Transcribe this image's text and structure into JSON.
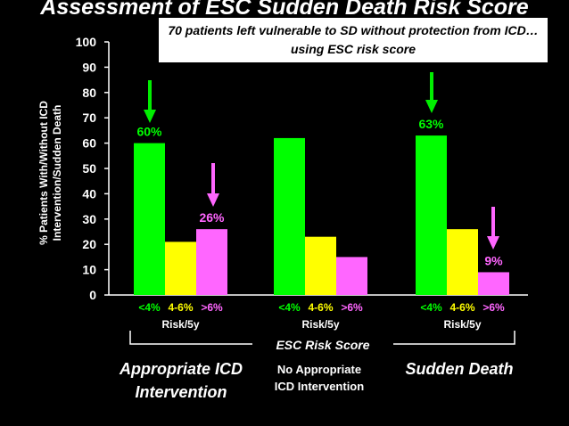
{
  "chart_data": {
    "type": "bar",
    "title": "Assessment of ESC Sudden Death Risk Score",
    "annotation": "70 patients left vulnerable to SD without protection from ICD… using ESC risk score",
    "ylabel": "% Patients With/Without ICD Intervention/Sudden Death",
    "ylim": [
      0,
      100
    ],
    "yticks": [
      0,
      10,
      20,
      30,
      40,
      50,
      60,
      70,
      80,
      90,
      100
    ],
    "grid": false,
    "categories": [
      "<4%",
      "4-6%",
      ">6%"
    ],
    "category_colors": [
      "#00ff00",
      "#ffff00",
      "#ff66ff"
    ],
    "risk_unit_label": "Risk/5y",
    "xlabel": "ESC Risk Score",
    "groups": [
      {
        "name": "Appropriate ICD Intervention",
        "values": [
          60,
          21,
          26
        ],
        "value_labels": [
          "60%",
          "",
          "26%"
        ]
      },
      {
        "name": "No Appropriate ICD Intervention",
        "values": [
          62,
          23,
          15
        ],
        "value_labels": [
          "",
          "",
          ""
        ]
      },
      {
        "name": "Sudden Death",
        "values": [
          63,
          26,
          9
        ],
        "value_labels": [
          "63%",
          "",
          "9%"
        ]
      }
    ]
  }
}
